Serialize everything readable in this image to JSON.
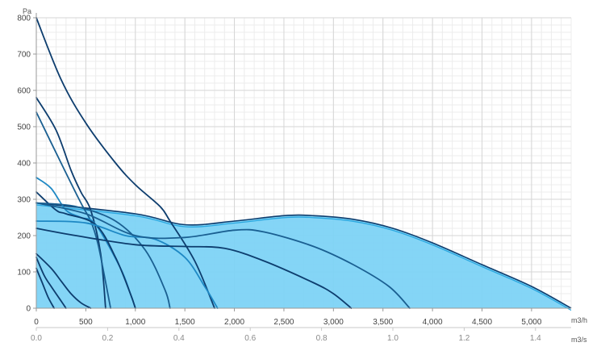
{
  "chart_data": {
    "type": "line",
    "title": "",
    "y_unit": "Pa",
    "x_unit_top": "m3/h",
    "x_unit_bottom": "m3/s",
    "ylim": [
      0,
      800
    ],
    "xlim": [
      0,
      5400
    ],
    "y_ticks": [
      0,
      100,
      200,
      300,
      400,
      500,
      600,
      700,
      800
    ],
    "x_ticks": [
      0,
      500,
      1000,
      1500,
      2000,
      2500,
      3000,
      3500,
      4000,
      4500,
      5000
    ],
    "x_tick_labels": [
      "0",
      "500",
      "1,000",
      "1,500",
      "2,000",
      "2,500",
      "3,000",
      "3,500",
      "4,000",
      "4,500",
      "5,000"
    ],
    "x2_ticks": [
      0,
      0.2,
      0.4,
      0.6,
      0.8,
      1.0,
      1.2,
      1.4
    ],
    "x2_tick_labels": [
      "0.0",
      "0.2",
      "0.4",
      "0.6",
      "0.8",
      "1.0",
      "1.2",
      "1.4"
    ],
    "grid": true,
    "colors": {
      "fill": "#7dd3f5",
      "curve_dark": "#0d3d6e",
      "curve_mid": "#1a5f91",
      "curve_light": "#1e88c4",
      "grid_major": "#d6d6d6",
      "grid_minor": "#ececec"
    },
    "envelope": {
      "x": [
        0,
        1000,
        1500,
        2000,
        2500,
        2800,
        3200,
        3600,
        4000,
        4500,
        5000,
        5400
      ],
      "y": [
        290,
        260,
        230,
        240,
        255,
        255,
        245,
        220,
        180,
        120,
        60,
        0
      ]
    },
    "series": [
      {
        "x": [
          0,
          250,
          500,
          800,
          1000,
          1250,
          1350,
          1600,
          1800
        ],
        "y": [
          800,
          630,
          510,
          400,
          340,
          280,
          240,
          130,
          0
        ],
        "color": "#0d3d6e"
      },
      {
        "x": [
          0,
          200,
          350,
          450,
          550,
          650,
          700
        ],
        "y": [
          580,
          490,
          380,
          320,
          270,
          150,
          0
        ],
        "color": "#0d3d6e"
      },
      {
        "x": [
          0,
          250,
          450,
          550,
          620,
          680,
          750
        ],
        "y": [
          540,
          400,
          290,
          240,
          180,
          100,
          0
        ],
        "color": "#1a5f91"
      },
      {
        "x": [
          0,
          150,
          300,
          450,
          600,
          850,
          950,
          1000
        ],
        "y": [
          360,
          330,
          270,
          250,
          230,
          110,
          40,
          0
        ],
        "color": "#1e88c4"
      },
      {
        "x": [
          0,
          200,
          300,
          600,
          800,
          950,
          1000
        ],
        "y": [
          320,
          270,
          260,
          230,
          140,
          40,
          0
        ],
        "color": "#0d3d6e"
      },
      {
        "x": [
          0,
          400,
          800,
          1100,
          1300,
          1350
        ],
        "y": [
          290,
          280,
          240,
          160,
          50,
          0
        ],
        "color": "#1a5f91"
      },
      {
        "x": [
          0,
          500,
          900,
          1200,
          1500,
          1700,
          1830
        ],
        "y": [
          240,
          235,
          200,
          190,
          140,
          60,
          0
        ],
        "color": "#1e88c4"
      },
      {
        "x": [
          0,
          500,
          1000,
          1500,
          2000,
          2300,
          2800,
          3200,
          3560,
          3770
        ],
        "y": [
          290,
          260,
          200,
          195,
          215,
          210,
          170,
          120,
          60,
          0
        ],
        "color": "#1a5f91"
      },
      {
        "x": [
          0,
          400,
          1000,
          1500,
          1900,
          2300,
          2800,
          3000,
          3180
        ],
        "y": [
          220,
          200,
          175,
          170,
          165,
          130,
          70,
          40,
          0
        ],
        "color": "#0d3d6e"
      },
      {
        "x": [
          0,
          150,
          250,
          350,
          450,
          550
        ],
        "y": [
          150,
          110,
          75,
          40,
          15,
          0
        ],
        "color": "#0d3d6e"
      },
      {
        "x": [
          0,
          80,
          150,
          250,
          300
        ],
        "y": [
          140,
          90,
          60,
          20,
          0
        ],
        "color": "#0d3d6e"
      },
      {
        "x": [
          0,
          60,
          120,
          180
        ],
        "y": [
          110,
          70,
          30,
          0
        ],
        "color": "#0d3d6e"
      }
    ]
  }
}
